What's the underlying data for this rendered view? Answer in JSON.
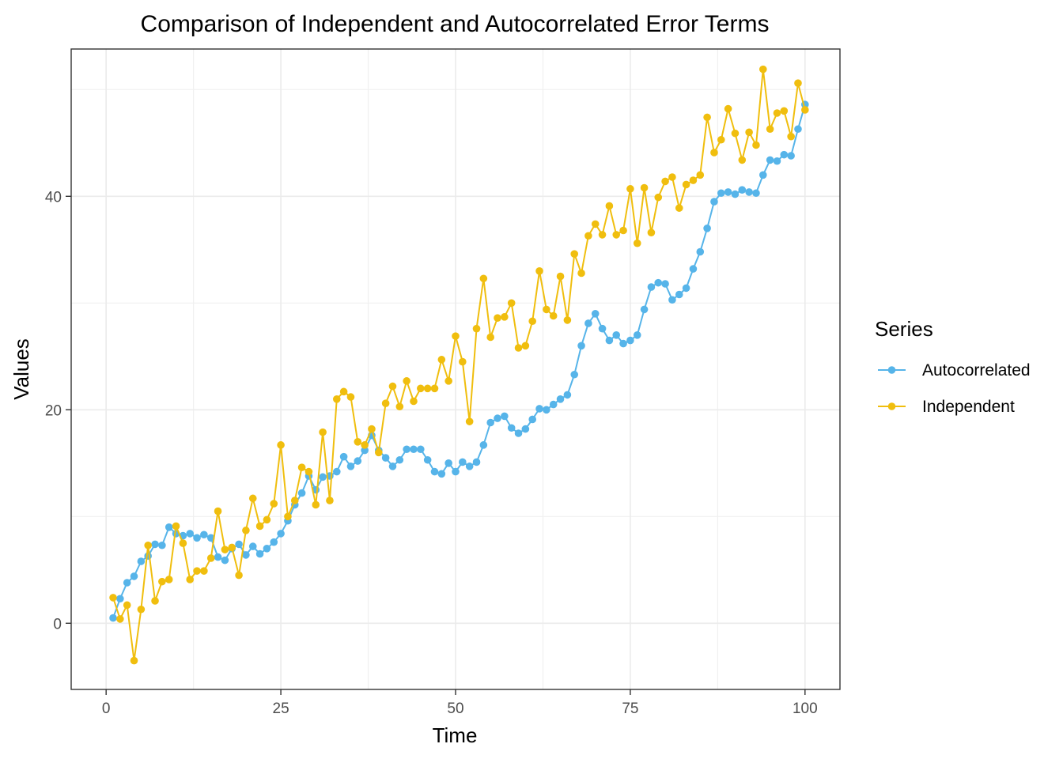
{
  "chart_data": {
    "type": "line",
    "title": "Comparison of Independent and Autocorrelated Error Terms",
    "xlabel": "Time",
    "ylabel": "Values",
    "xlim": [
      -5,
      105
    ],
    "ylim": [
      -6.2,
      53.8
    ],
    "x_ticks": [
      0,
      25,
      50,
      75,
      100
    ],
    "y_ticks": [
      0,
      20,
      40
    ],
    "grid": true,
    "legend": {
      "title": "Series",
      "position": "right"
    },
    "x": [
      1,
      2,
      3,
      4,
      5,
      6,
      7,
      8,
      9,
      10,
      11,
      12,
      13,
      14,
      15,
      16,
      17,
      18,
      19,
      20,
      21,
      22,
      23,
      24,
      25,
      26,
      27,
      28,
      29,
      30,
      31,
      32,
      33,
      34,
      35,
      36,
      37,
      38,
      39,
      40,
      41,
      42,
      43,
      44,
      45,
      46,
      47,
      48,
      49,
      50,
      51,
      52,
      53,
      54,
      55,
      56,
      57,
      58,
      59,
      60,
      61,
      62,
      63,
      64,
      65,
      66,
      67,
      68,
      69,
      70,
      71,
      72,
      73,
      74,
      75,
      76,
      77,
      78,
      79,
      80,
      81,
      82,
      83,
      84,
      85,
      86,
      87,
      88,
      89,
      90,
      91,
      92,
      93,
      94,
      95,
      96,
      97,
      98,
      99,
      100
    ],
    "series": [
      {
        "name": "Autocorrelated",
        "color": "#56B4E9",
        "values": [
          0.5,
          2.3,
          3.8,
          4.4,
          5.8,
          6.3,
          7.4,
          7.3,
          9.0,
          8.4,
          8.2,
          8.4,
          8.0,
          8.3,
          8.0,
          6.2,
          5.9,
          7.0,
          7.4,
          6.4,
          7.2,
          6.5,
          7.0,
          7.6,
          8.4,
          9.6,
          11.1,
          12.2,
          13.8,
          12.5,
          13.7,
          13.8,
          14.2,
          15.6,
          14.7,
          15.2,
          16.2,
          17.6,
          16.2,
          15.5,
          14.7,
          15.3,
          16.3,
          16.3,
          16.3,
          15.3,
          14.2,
          14.0,
          15.0,
          14.2,
          15.1,
          14.7,
          15.1,
          16.7,
          18.8,
          19.2,
          19.4,
          18.3,
          17.8,
          18.2,
          19.1,
          20.1,
          20.0,
          20.5,
          21.0,
          21.4,
          23.3,
          26.0,
          28.1,
          29.0,
          27.6,
          26.5,
          27.0,
          26.2,
          26.5,
          27.0,
          29.4,
          31.5,
          31.9,
          31.8,
          30.3,
          30.8,
          31.4,
          33.2,
          34.8,
          37.0,
          39.5,
          40.3,
          40.4,
          40.2,
          40.6,
          40.4,
          40.3,
          42.0,
          43.4,
          43.3,
          43.9,
          43.8,
          46.3,
          48.6
        ]
      },
      {
        "name": "Independent",
        "color": "#F0BE0E",
        "values": [
          2.4,
          0.4,
          1.7,
          -3.5,
          1.3,
          7.3,
          2.1,
          3.9,
          4.1,
          9.1,
          7.5,
          4.1,
          4.9,
          4.9,
          6.1,
          10.5,
          6.9,
          7.1,
          4.5,
          8.7,
          11.7,
          9.1,
          9.7,
          11.2,
          16.7,
          10.0,
          11.5,
          14.6,
          14.2,
          11.1,
          17.9,
          11.5,
          21.0,
          21.7,
          21.2,
          17.0,
          16.7,
          18.2,
          16.0,
          20.6,
          22.2,
          20.3,
          22.7,
          20.8,
          22.0,
          22.0,
          22.0,
          24.7,
          22.7,
          26.9,
          24.5,
          18.9,
          27.6,
          32.3,
          26.8,
          28.6,
          28.7,
          30.0,
          25.8,
          26.0,
          28.3,
          33.0,
          29.4,
          28.8,
          32.5,
          28.4,
          34.6,
          32.8,
          36.3,
          37.4,
          36.4,
          39.1,
          36.4,
          36.8,
          40.7,
          35.6,
          40.8,
          36.6,
          39.9,
          41.4,
          41.8,
          38.9,
          41.1,
          41.5,
          42.0,
          47.4,
          44.1,
          45.3,
          48.2,
          45.9,
          43.4,
          46.0,
          44.8,
          51.9,
          46.3,
          47.8,
          48.0,
          45.6,
          50.6,
          48.1
        ]
      }
    ]
  }
}
